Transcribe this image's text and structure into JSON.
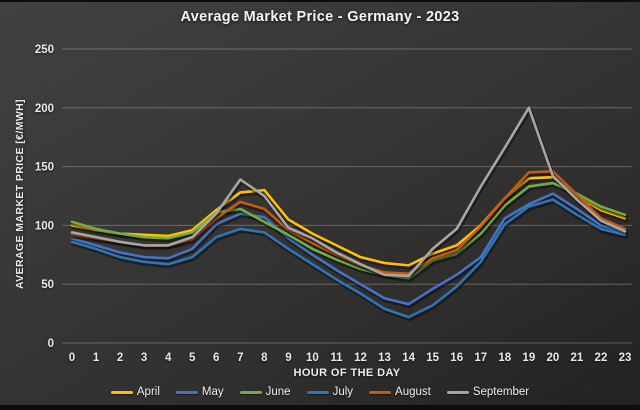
{
  "chart_data": {
    "type": "line",
    "title": "Average Market Price - Germany - 2023",
    "xlabel": "HOUR OF THE DAY",
    "ylabel": "AVERAGE MARKET PRICE [€/MWH]",
    "x_ticks": [
      0,
      1,
      2,
      3,
      4,
      5,
      6,
      7,
      8,
      9,
      10,
      11,
      12,
      13,
      14,
      15,
      16,
      17,
      18,
      19,
      20,
      21,
      22,
      23
    ],
    "y_ticks": [
      0,
      50,
      100,
      150,
      200,
      250
    ],
    "ylim": [
      0,
      250
    ],
    "grid": true,
    "legend_position": "bottom",
    "units": "€/MWH",
    "series": [
      {
        "name": "April",
        "color": "#FFC000",
        "values": [
          100,
          96,
          93,
          92,
          91,
          96,
          113,
          128,
          130,
          105,
          93,
          83,
          73,
          68,
          66,
          76,
          83,
          100,
          123,
          140,
          141,
          125,
          113,
          106
        ]
      },
      {
        "name": "May",
        "color": "#4472C4",
        "values": [
          89,
          83,
          77,
          73,
          72,
          80,
          101,
          110,
          107,
          89,
          75,
          62,
          50,
          38,
          33,
          46,
          58,
          73,
          106,
          118,
          127,
          114,
          100,
          94
        ]
      },
      {
        "name": "June",
        "color": "#70AD47",
        "values": [
          103,
          97,
          93,
          90,
          89,
          94,
          111,
          114,
          103,
          92,
          80,
          71,
          63,
          58,
          55,
          70,
          76,
          93,
          117,
          133,
          136,
          127,
          116,
          109
        ]
      },
      {
        "name": "July",
        "color": "#2E75B6",
        "values": [
          86,
          80,
          73,
          69,
          67,
          73,
          90,
          97,
          94,
          80,
          67,
          54,
          42,
          29,
          22,
          32,
          48,
          69,
          101,
          116,
          122,
          109,
          97,
          92
        ]
      },
      {
        "name": "August",
        "color": "#C55A11",
        "values": [
          92,
          89,
          86,
          83,
          83,
          88,
          106,
          120,
          114,
          96,
          85,
          75,
          66,
          60,
          59,
          72,
          79,
          99,
          123,
          145,
          146,
          126,
          106,
          97
        ]
      },
      {
        "name": "September",
        "color": "#A6A6A6",
        "values": [
          94,
          90,
          86,
          83,
          83,
          90,
          110,
          139,
          125,
          98,
          89,
          77,
          67,
          58,
          57,
          80,
          97,
          133,
          166,
          200,
          142,
          122,
          104,
          95
        ]
      }
    ]
  }
}
